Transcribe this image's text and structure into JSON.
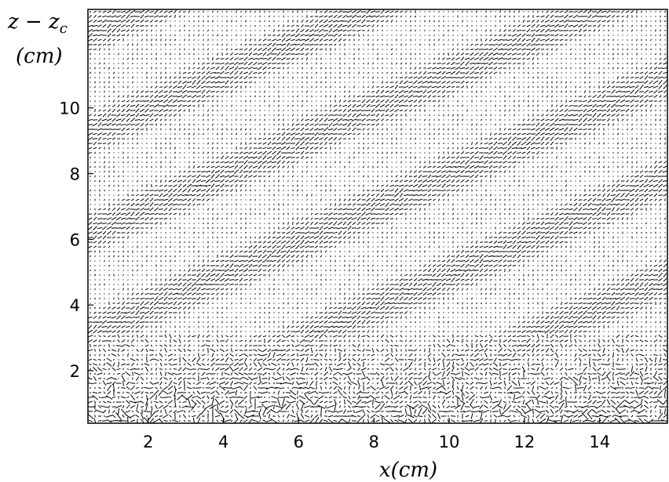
{
  "chart_data": {
    "type": "vector-field",
    "xlabel": "x(cm)",
    "ylabel_line1": "z − z",
    "ylabel_sub": "c",
    "ylabel_line2": "(cm)",
    "xlim": [
      0.4,
      15.8
    ],
    "ylim": [
      0.4,
      13.0
    ],
    "xticks": [
      2,
      4,
      6,
      8,
      10,
      12,
      14
    ],
    "yticks": [
      2,
      4,
      6,
      8,
      10
    ],
    "grid": false,
    "legend": "none",
    "description_free": true,
    "colors": {
      "vectors": "#000000",
      "background": "#ffffff"
    }
  }
}
